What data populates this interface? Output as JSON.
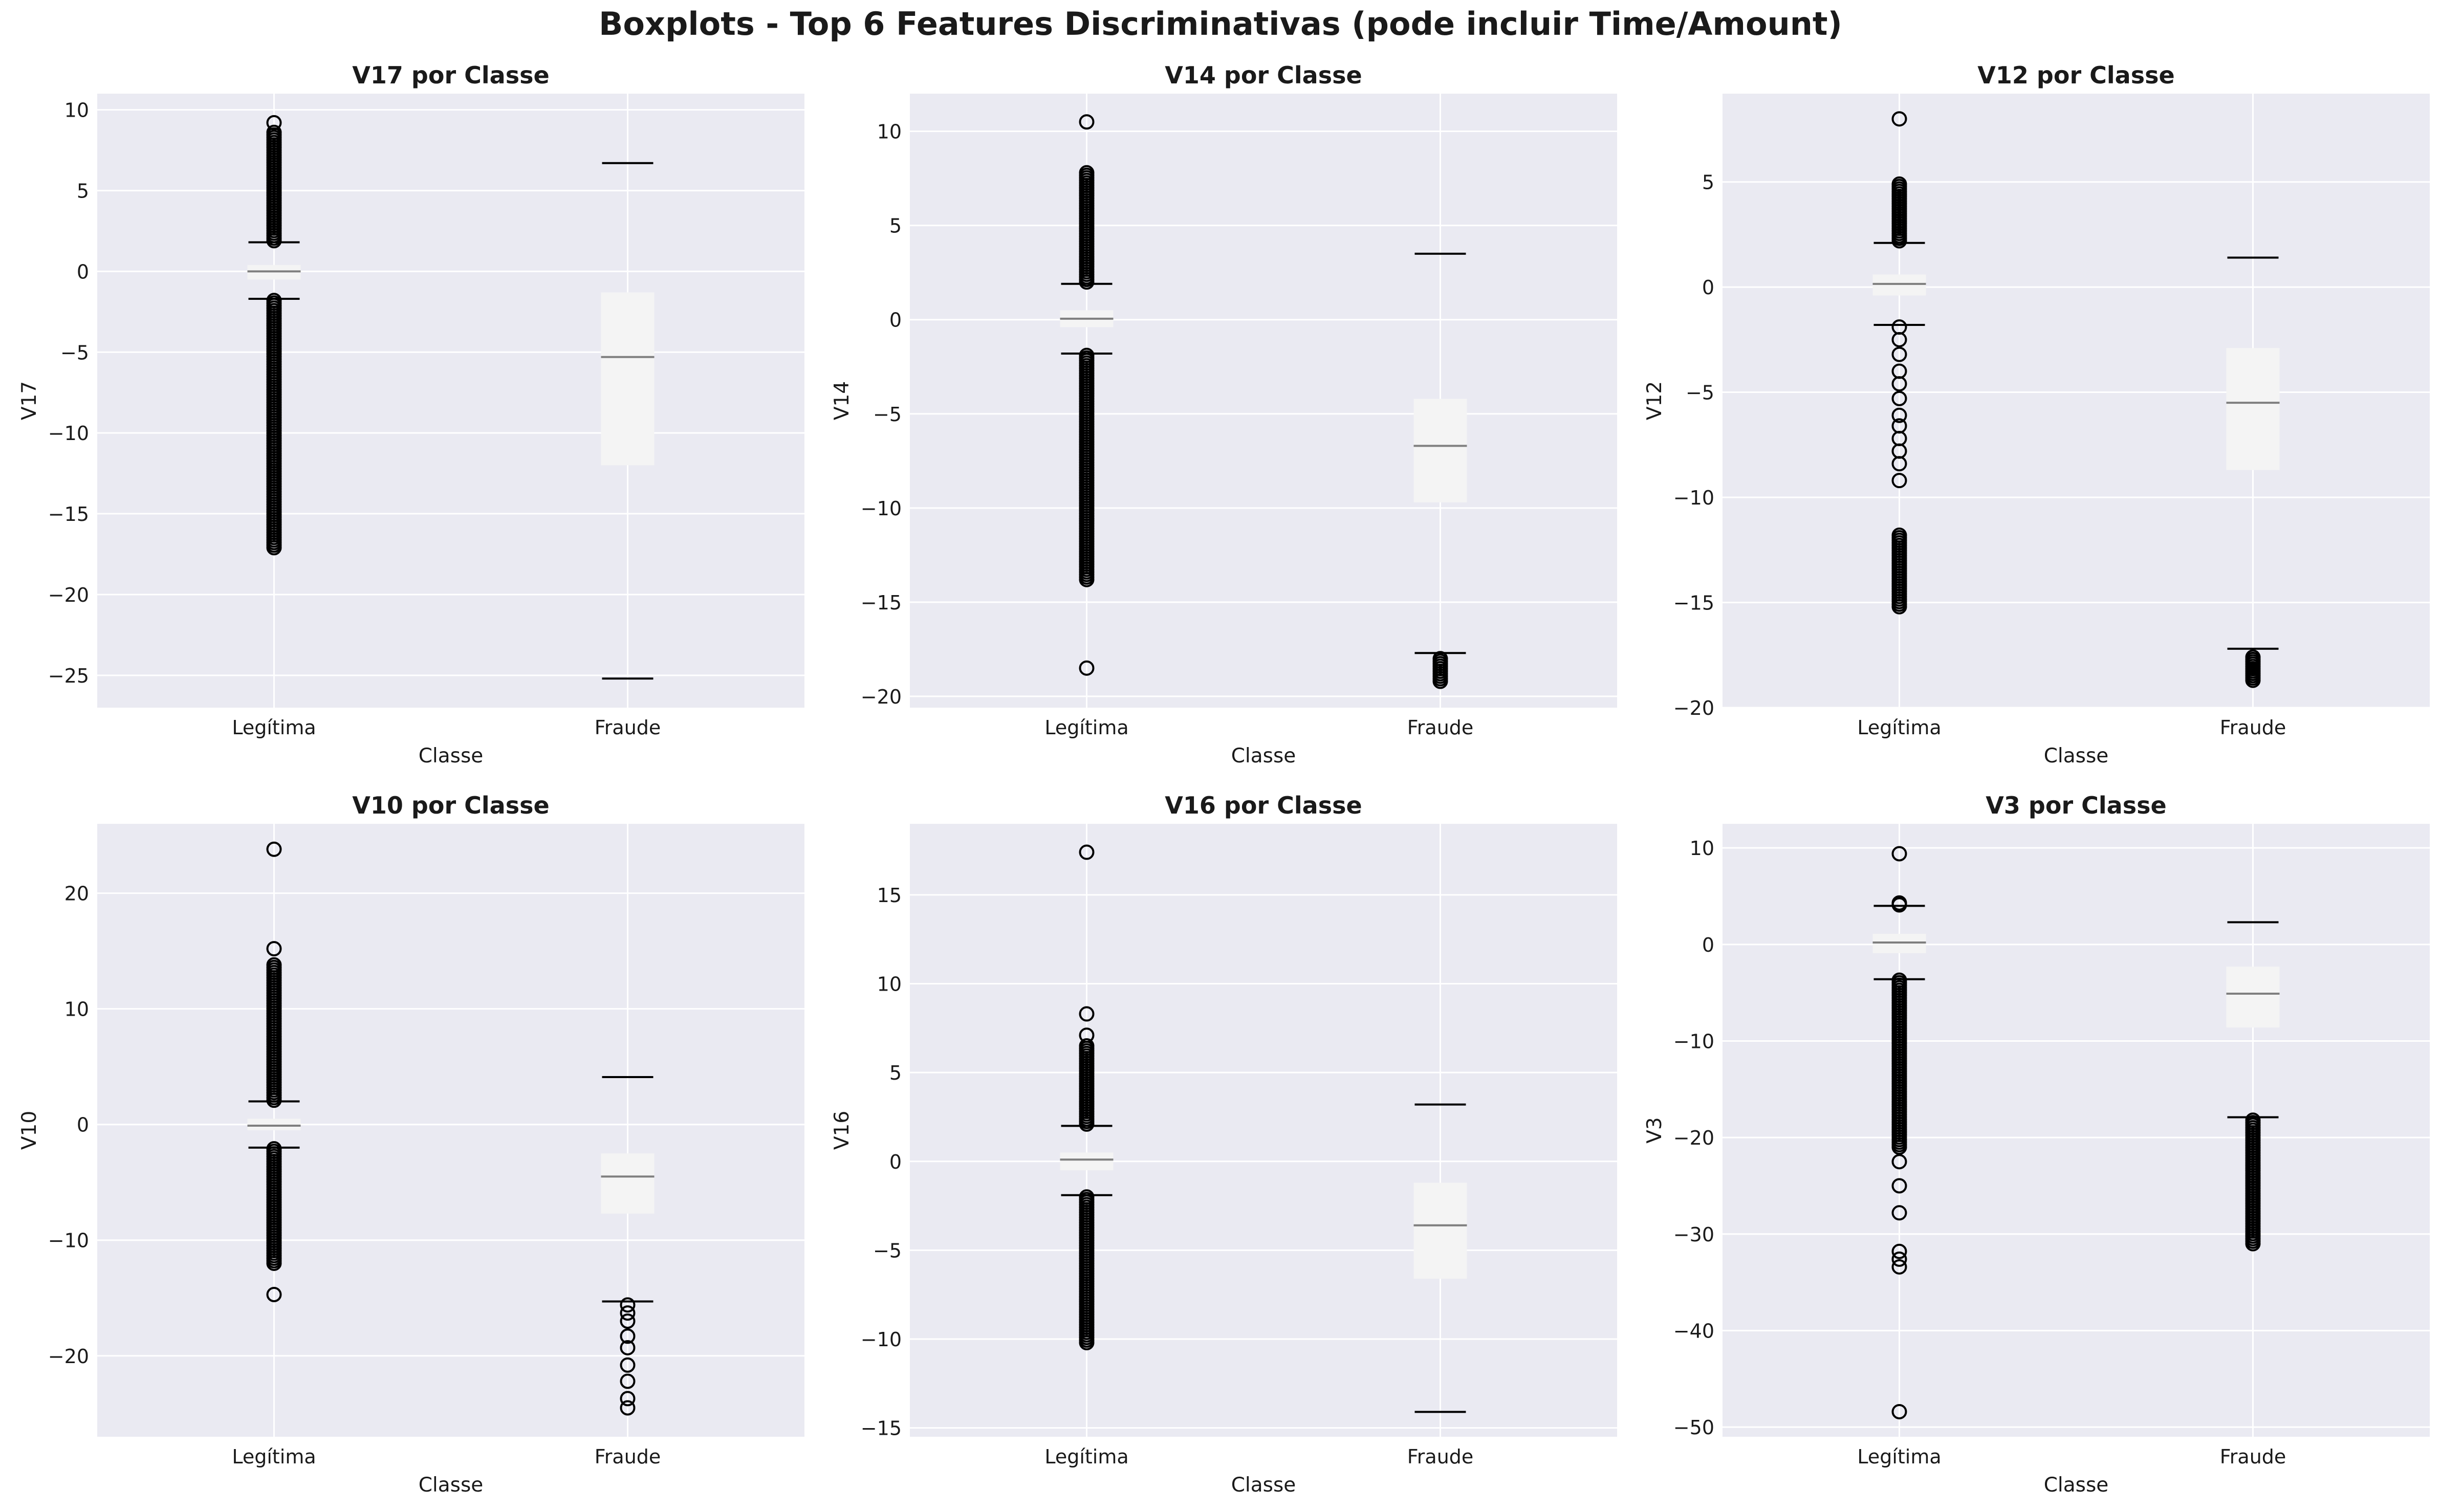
{
  "suptitle": "Boxplots - Top 6 Features Discriminativas (pode incluir Time/Amount)",
  "colors": {
    "plot_bg": "#eaeaf2",
    "grid": "#ffffff",
    "box_fill": "#f4f4f4",
    "median": "#7f7f7f",
    "whisker_cap": "#000000",
    "outlier_edge": "#000000",
    "text": "#1a1a1a"
  },
  "chart_data": [
    {
      "type": "box",
      "title": "V17 por Classe",
      "xlabel": "Classe",
      "ylabel": "V17",
      "categories": [
        "Legítima",
        "Fraude"
      ],
      "ylim": [
        -27,
        11
      ],
      "yticks": [
        -25,
        -20,
        -15,
        -10,
        -5,
        0,
        5,
        10
      ],
      "boxes": [
        {
          "q1": -0.5,
          "median": 0.0,
          "q3": 0.4,
          "whisker_low": -1.7,
          "whisker_high": 1.8,
          "outliers_low_range": [
            -17.1,
            -1.8
          ],
          "outliers_high_range": [
            1.9,
            8.6
          ],
          "outliers_extra": [
            9.2
          ]
        },
        {
          "q1": -12.0,
          "median": -5.3,
          "q3": -1.3,
          "whisker_low": -25.2,
          "whisker_high": 6.7,
          "outliers_low_range": null,
          "outliers_high_range": null,
          "outliers_extra": []
        }
      ]
    },
    {
      "type": "box",
      "title": "V14 por Classe",
      "xlabel": "Classe",
      "ylabel": "V14",
      "categories": [
        "Legítima",
        "Fraude"
      ],
      "ylim": [
        -20.6,
        12
      ],
      "yticks": [
        -20,
        -15,
        -10,
        -5,
        0,
        5,
        10
      ],
      "boxes": [
        {
          "q1": -0.4,
          "median": 0.05,
          "q3": 0.5,
          "whisker_low": -1.8,
          "whisker_high": 1.9,
          "outliers_low_range": [
            -13.8,
            -1.9
          ],
          "outliers_high_range": [
            2.0,
            7.8
          ],
          "outliers_extra": [
            10.5,
            -18.5
          ]
        },
        {
          "q1": -9.7,
          "median": -6.7,
          "q3": -4.2,
          "whisker_low": -17.7,
          "whisker_high": 3.5,
          "outliers_low_range": [
            -19.2,
            -18.0
          ],
          "outliers_high_range": null,
          "outliers_extra": []
        }
      ]
    },
    {
      "type": "box",
      "title": "V12 por Classe",
      "xlabel": "Classe",
      "ylabel": "V12",
      "categories": [
        "Legítima",
        "Fraude"
      ],
      "ylim": [
        -20,
        9.2
      ],
      "yticks": [
        -20,
        -15,
        -10,
        -5,
        0,
        5
      ],
      "boxes": [
        {
          "q1": -0.4,
          "median": 0.15,
          "q3": 0.6,
          "whisker_low": -1.8,
          "whisker_high": 2.1,
          "outliers_low_range": [
            -15.2,
            -11.8
          ],
          "outliers_high_range": [
            2.2,
            4.9
          ],
          "outliers_extra": [
            8.0,
            -1.9,
            -2.5,
            -3.2,
            -4.0,
            -4.6,
            -5.3,
            -6.1,
            -6.6,
            -7.2,
            -7.8,
            -8.4,
            -9.2
          ]
        },
        {
          "q1": -8.7,
          "median": -5.5,
          "q3": -2.9,
          "whisker_low": -17.2,
          "whisker_high": 1.4,
          "outliers_low_range": [
            -18.7,
            -17.6
          ],
          "outliers_high_range": null,
          "outliers_extra": []
        }
      ]
    },
    {
      "type": "box",
      "title": "V10 por Classe",
      "xlabel": "Classe",
      "ylabel": "V10",
      "categories": [
        "Legítima",
        "Fraude"
      ],
      "ylim": [
        -27,
        26
      ],
      "yticks": [
        -20,
        -10,
        0,
        10,
        20
      ],
      "boxes": [
        {
          "q1": -0.5,
          "median": -0.1,
          "q3": 0.5,
          "whisker_low": -2.0,
          "whisker_high": 2.0,
          "outliers_low_range": [
            -12.0,
            -2.1
          ],
          "outliers_high_range": [
            2.1,
            13.8
          ],
          "outliers_extra": [
            15.2,
            23.8,
            -14.7
          ]
        },
        {
          "q1": -7.7,
          "median": -4.5,
          "q3": -2.5,
          "whisker_low": -15.3,
          "whisker_high": 4.1,
          "outliers_low_range": null,
          "outliers_high_range": null,
          "outliers_extra": [
            -15.6,
            -16.3,
            -17.0,
            -18.3,
            -19.3,
            -20.8,
            -22.2,
            -23.7,
            -24.5
          ]
        }
      ]
    },
    {
      "type": "box",
      "title": "V16 por Classe",
      "xlabel": "Classe",
      "ylabel": "V16",
      "categories": [
        "Legítima",
        "Fraude"
      ],
      "ylim": [
        -15.5,
        19
      ],
      "yticks": [
        -15,
        -10,
        -5,
        0,
        5,
        10,
        15
      ],
      "boxes": [
        {
          "q1": -0.5,
          "median": 0.1,
          "q3": 0.5,
          "whisker_low": -1.9,
          "whisker_high": 2.0,
          "outliers_low_range": [
            -10.2,
            -2.0
          ],
          "outliers_high_range": [
            2.1,
            6.5
          ],
          "outliers_extra": [
            7.1,
            8.3,
            17.4
          ]
        },
        {
          "q1": -6.6,
          "median": -3.6,
          "q3": -1.2,
          "whisker_low": -14.1,
          "whisker_high": 3.2,
          "outliers_low_range": null,
          "outliers_high_range": null,
          "outliers_extra": []
        }
      ]
    },
    {
      "type": "box",
      "title": "V3 por Classe",
      "xlabel": "Classe",
      "ylabel": "V3",
      "categories": [
        "Legítima",
        "Fraude"
      ],
      "ylim": [
        -51,
        12.5
      ],
      "yticks": [
        -50,
        -40,
        -30,
        -20,
        -10,
        0,
        10
      ],
      "boxes": [
        {
          "q1": -0.9,
          "median": 0.2,
          "q3": 1.1,
          "whisker_low": -3.6,
          "whisker_high": 4.0,
          "outliers_low_range": [
            -21.0,
            -3.7
          ],
          "outliers_high_range": [
            4.1,
            4.3
          ],
          "outliers_extra": [
            9.4,
            -22.5,
            -25.0,
            -27.8,
            -31.8,
            -32.6,
            -33.4,
            -48.4
          ]
        },
        {
          "q1": -8.6,
          "median": -5.1,
          "q3": -2.3,
          "whisker_low": -17.9,
          "whisker_high": 2.3,
          "outliers_low_range": [
            -31.0,
            -18.2
          ],
          "outliers_high_range": null,
          "outliers_extra": []
        }
      ]
    }
  ]
}
